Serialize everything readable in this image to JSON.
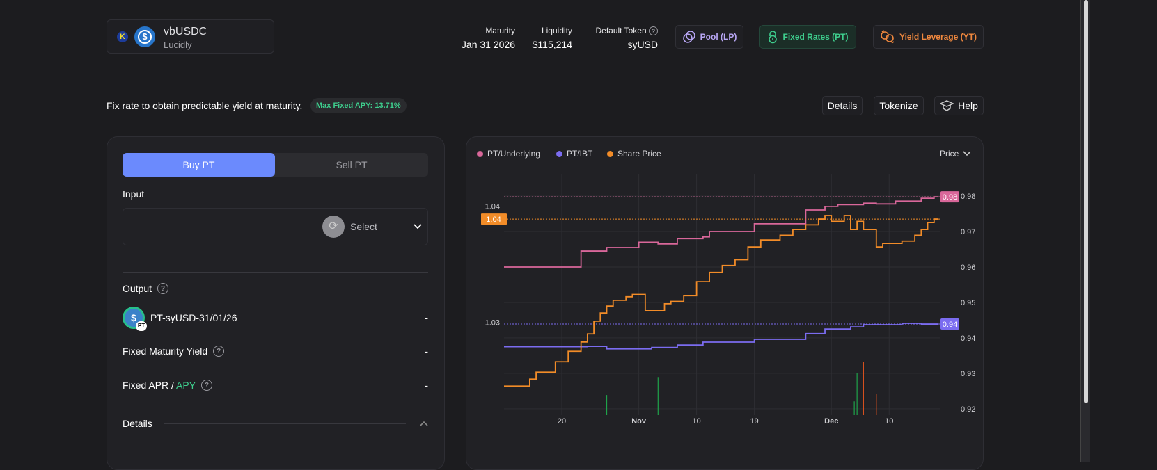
{
  "header": {
    "token_name": "vbUSDC",
    "protocol": "Lucidly",
    "stats": [
      {
        "label": "Maturity",
        "value": "Jan 31 2026"
      },
      {
        "label": "Liquidity",
        "value": "$115,214"
      },
      {
        "label": "Default Token",
        "value": "syUSD"
      }
    ],
    "modes": [
      {
        "label": "Pool (LP)",
        "color": "#b9a7f5"
      },
      {
        "label": "Fixed Rates (PT)",
        "color": "#3ecf8e"
      },
      {
        "label": "Yield Leverage (YT)",
        "color": "#f0883e"
      }
    ]
  },
  "subheader": {
    "description": "Fix rate to obtain predictable yield at maturity.",
    "badge": "Max Fixed APY: 13.71%",
    "actions": [
      "Details",
      "Tokenize",
      "Help"
    ]
  },
  "trade": {
    "tabs": [
      "Buy PT",
      "Sell PT"
    ],
    "active_tab": "Buy PT",
    "input_label": "Input",
    "input_value": "",
    "token_select": "Select",
    "output_label": "Output",
    "output_token": "PT-syUSD-31/01/26",
    "output_token_badge": "PT",
    "output_value": "-",
    "fixed_maturity_yield_label": "Fixed Maturity Yield",
    "fixed_maturity_yield_value": "-",
    "fixed_apr_label": "Fixed APR /",
    "fixed_apy_label": "APY",
    "fixed_apr_value": "-",
    "details_label": "Details"
  },
  "chart_data": {
    "type": "line",
    "view_selector": "Price",
    "legend_placement": "top-left",
    "grid": true,
    "x_range": [
      "2025-10-11",
      "2025-12-18"
    ],
    "x_ticks": [
      {
        "date": "2025-10-20",
        "label": "20"
      },
      {
        "date": "2025-11-01",
        "label": "Nov"
      },
      {
        "date": "2025-11-10",
        "label": "10"
      },
      {
        "date": "2025-11-19",
        "label": "19"
      },
      {
        "date": "2025-12-01",
        "label": "Dec"
      },
      {
        "date": "2025-12-10",
        "label": "10"
      }
    ],
    "right_axis": {
      "ylim": [
        0.9182,
        0.9863
      ],
      "ticks": [
        "0.98",
        "0.97",
        "0.96",
        "0.95",
        "0.94",
        "0.93",
        "0.92"
      ]
    },
    "left_axis": {
      "ylim": [
        1.022,
        1.0428
      ],
      "ticks": [
        "1.04",
        "1.03"
      ]
    },
    "series": [
      {
        "name": "PT/Underlying",
        "color": "#d9679a",
        "axis": "right",
        "last_label": "0.98",
        "points": [
          [
            "2025-10-11",
            0.96
          ],
          [
            "2025-10-23",
            0.9645
          ],
          [
            "2025-10-27",
            0.9655
          ],
          [
            "2025-11-01",
            0.967
          ],
          [
            "2025-11-04",
            0.9665
          ],
          [
            "2025-11-07",
            0.968
          ],
          [
            "2025-11-11",
            0.9685
          ],
          [
            "2025-11-12",
            0.97
          ],
          [
            "2025-11-19",
            0.9722
          ],
          [
            "2025-11-27",
            0.9761
          ],
          [
            "2025-11-30",
            0.9771
          ],
          [
            "2025-12-02",
            0.9776
          ],
          [
            "2025-12-06",
            0.978
          ],
          [
            "2025-12-08",
            0.9778
          ],
          [
            "2025-12-11",
            0.9786
          ],
          [
            "2025-12-15",
            0.9794
          ],
          [
            "2025-12-17",
            0.9798
          ]
        ]
      },
      {
        "name": "PT/IBT",
        "color": "#7b6cf0",
        "axis": "right",
        "last_label": "0.94",
        "points": [
          [
            "2025-10-11",
            0.9375
          ],
          [
            "2025-10-24",
            0.9376
          ],
          [
            "2025-10-27",
            0.9369
          ],
          [
            "2025-11-03",
            0.9373
          ],
          [
            "2025-11-07",
            0.938
          ],
          [
            "2025-11-11",
            0.9388
          ],
          [
            "2025-11-19",
            0.9396
          ],
          [
            "2025-11-27",
            0.9412
          ],
          [
            "2025-11-30",
            0.9425
          ],
          [
            "2025-12-04",
            0.9431
          ],
          [
            "2025-12-06",
            0.9437
          ],
          [
            "2025-12-12",
            0.9441
          ],
          [
            "2025-12-15",
            0.9439
          ],
          [
            "2025-12-17",
            0.9439
          ]
        ]
      },
      {
        "name": "Share Price",
        "color": "#f28c28",
        "axis": "left",
        "last_label": "1.04",
        "points": [
          [
            "2025-10-11",
            1.0245
          ],
          [
            "2025-10-15",
            1.0251
          ],
          [
            "2025-10-16",
            1.0257
          ],
          [
            "2025-10-19",
            1.0266
          ],
          [
            "2025-10-21",
            1.0275
          ],
          [
            "2025-10-23",
            1.0283
          ],
          [
            "2025-10-24",
            1.029
          ],
          [
            "2025-10-25",
            1.0301
          ],
          [
            "2025-10-26",
            1.0308
          ],
          [
            "2025-10-27",
            1.0314
          ],
          [
            "2025-10-28",
            1.0319
          ],
          [
            "2025-10-30",
            1.0322
          ],
          [
            "2025-10-31",
            1.0324
          ],
          [
            "2025-11-02",
            1.031
          ],
          [
            "2025-11-05",
            1.0316
          ],
          [
            "2025-11-06",
            1.0318
          ],
          [
            "2025-11-08",
            1.0323
          ],
          [
            "2025-11-10",
            1.0335
          ],
          [
            "2025-11-12",
            1.0343
          ],
          [
            "2025-11-14",
            1.0349
          ],
          [
            "2025-11-16",
            1.0354
          ],
          [
            "2025-11-18",
            1.0365
          ],
          [
            "2025-11-20",
            1.0371
          ],
          [
            "2025-11-23",
            1.0375
          ],
          [
            "2025-11-25",
            1.038
          ],
          [
            "2025-11-27",
            1.0384
          ],
          [
            "2025-11-29",
            1.0389
          ],
          [
            "2025-11-30",
            1.0392
          ],
          [
            "2025-12-01",
            1.0387
          ],
          [
            "2025-12-03",
            1.0392
          ],
          [
            "2025-12-04",
            1.038
          ],
          [
            "2025-12-05",
            1.0387
          ],
          [
            "2025-12-06",
            1.038
          ],
          [
            "2025-12-08",
            1.0365
          ],
          [
            "2025-12-09",
            1.0368
          ],
          [
            "2025-12-12",
            1.037
          ],
          [
            "2025-12-14",
            1.0375
          ],
          [
            "2025-12-15",
            1.038
          ],
          [
            "2025-12-16",
            1.0386
          ],
          [
            "2025-12-17",
            1.0389
          ]
        ]
      }
    ],
    "volume_bars": [
      {
        "date": "2025-10-27",
        "value": 0.38,
        "color": "#1fa34a"
      },
      {
        "date": "2025-11-04",
        "value": 0.72,
        "color": "#1fa34a"
      },
      {
        "date": "2025-12-05",
        "value": 0.26,
        "color": "#1fa34a"
      },
      {
        "date": "2025-12-05",
        "value": 0.8,
        "color": "#1fa34a"
      },
      {
        "date": "2025-12-06",
        "value": 1.0,
        "color": "#e0531f"
      },
      {
        "date": "2025-12-08",
        "value": 0.4,
        "color": "#e0531f"
      }
    ]
  }
}
